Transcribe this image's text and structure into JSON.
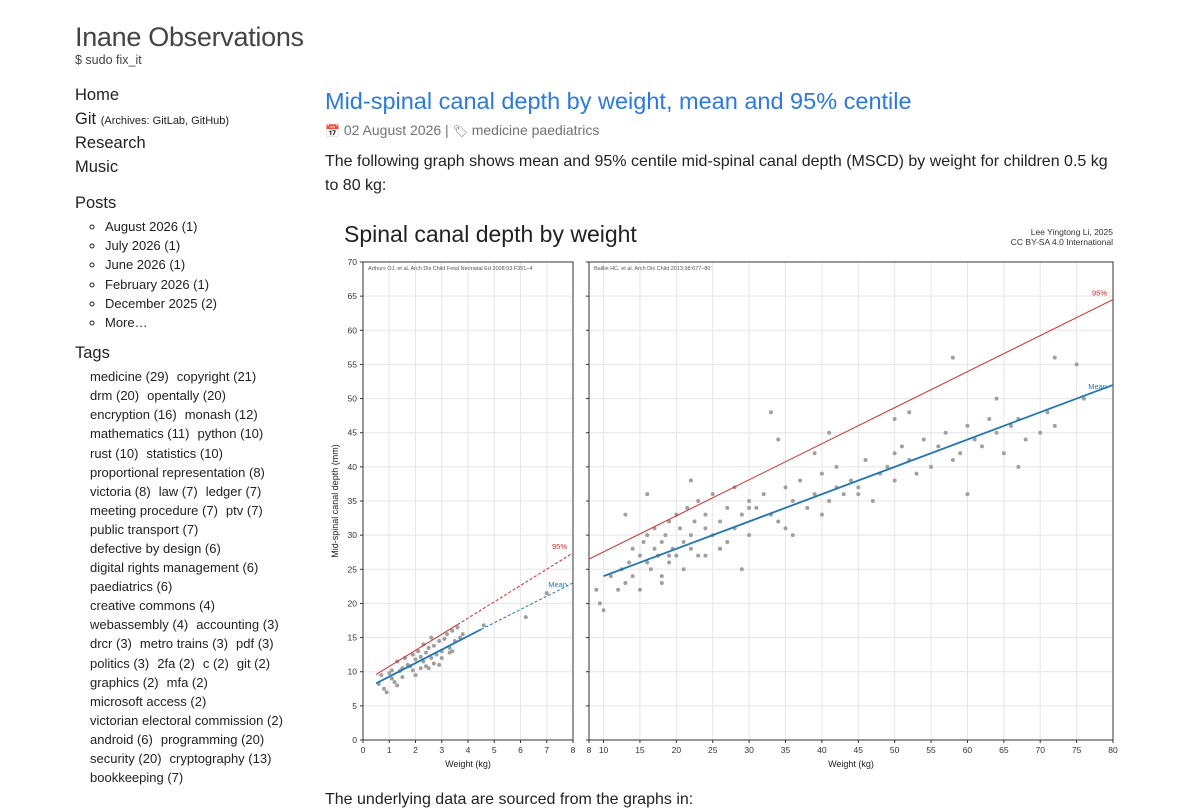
{
  "site": {
    "title": "Inane Observations",
    "subtitle": "$ sudo fix_it"
  },
  "nav": [
    {
      "label": "Home",
      "note": ""
    },
    {
      "label": "Git",
      "note": "(Archives: GitLab, GitHub)"
    },
    {
      "label": "Research",
      "note": ""
    },
    {
      "label": "Music",
      "note": ""
    }
  ],
  "posts": {
    "heading": "Posts",
    "items": [
      "August 2026 (1)",
      "July 2026 (1)",
      "June 2026 (1)",
      "February 2026 (1)",
      "December 2025 (2)",
      "More…"
    ]
  },
  "tags": {
    "heading": "Tags",
    "items": [
      "medicine (29)",
      "copyright (21)",
      "drm (20)",
      "opentally (20)",
      "encryption (16)",
      "monash (12)",
      "mathematics (11)",
      "python (10)",
      "rust (10)",
      "statistics (10)",
      "proportional representation (8)",
      "victoria (8)",
      "law (7)",
      "ledger (7)",
      "meeting procedure (7)",
      "ptv (7)",
      "public transport (7)",
      "defective by design (6)",
      "digital rights management (6)",
      "paediatrics (6)",
      "creative commons (4)",
      "webassembly (4)",
      "accounting (3)",
      "drcr (3)",
      "metro trains (3)",
      "pdf (3)",
      "politics (3)",
      "2fa (2)",
      "c (2)",
      "git (2)",
      "graphics (2)",
      "mfa (2)",
      "microsoft access (2)",
      "victorian electoral commission (2)",
      "android (6)",
      "programming (20)",
      "security (20)",
      "cryptography (13)",
      "bookkeeping (7)"
    ]
  },
  "post": {
    "title": "Mid-spinal canal depth by weight, mean and 95% centile",
    "date": "02 August 2026",
    "separator": "|",
    "tags_text": "medicine paediatrics",
    "lead": "The following graph shows mean and 95% centile mid-spinal canal depth (MSCD) by weight for children 0.5 kg to 80 kg:",
    "below": "The underlying data are sourced from the graphs in:"
  },
  "icons": {
    "calendar": "calendar-icon",
    "tags": "tags-icon"
  },
  "colors": {
    "link": "#2a7ae2",
    "mean": "#1f77b4",
    "centile": "#d62728",
    "points": "#a0a0a0"
  },
  "chart_data": {
    "type": "scatter",
    "title": "Spinal canal depth by weight",
    "credit_lines": [
      "Lee Yingtong Li, 2025",
      "CC BY-SA 4.0 International"
    ],
    "ylabel": "Mid-spinal canal depth (mm)",
    "ylim": [
      0,
      70
    ],
    "yticks": [
      0,
      5,
      10,
      15,
      20,
      25,
      30,
      35,
      40,
      45,
      50,
      55,
      60,
      65,
      70
    ],
    "grid": true,
    "panels": [
      {
        "source": "Arthurs OJ, et al. Arch Dis Child Fetal Neonatal Ed 2008;93:F351–4",
        "xlabel": "Weight (kg)",
        "xlim": [
          0,
          8
        ],
        "xticks": [
          0,
          1,
          2,
          3,
          4,
          5,
          6,
          7,
          8
        ],
        "series": [
          {
            "name": "95%",
            "style": "line",
            "x": [
              0.5,
              3.6
            ],
            "y": [
              9.6,
              16.9
            ],
            "extension_x": [
              3.6,
              8
            ],
            "extension_y": [
              16.9,
              27.4
            ]
          },
          {
            "name": "Mean",
            "style": "line",
            "x": [
              0.5,
              4.5
            ],
            "y": [
              8.3,
              16.2
            ],
            "extension_x": [
              4.5,
              8
            ],
            "extension_y": [
              16.2,
              23.0
            ]
          },
          {
            "style": "points",
            "x": [
              0.6,
              0.7,
              0.9,
              1.0,
              1.1,
              1.2,
              1.3,
              1.4,
              1.5,
              1.6,
              1.7,
              1.8,
              1.9,
              2.0,
              2.0,
              2.1,
              2.2,
              2.3,
              2.3,
              2.4,
              2.5,
              2.5,
              2.6,
              2.6,
              2.7,
              2.8,
              2.9,
              3.0,
              3.1,
              3.2,
              3.3,
              3.4,
              3.5,
              3.6,
              3.7,
              3.8,
              1.1,
              1.5,
              1.9,
              2.4,
              2.7,
              3.0,
              3.4,
              4.6,
              6.2,
              7.0,
              0.8,
              1.3,
              2.2,
              2.9,
              3.3
            ],
            "y": [
              8.2,
              9.5,
              7.0,
              9.8,
              10.2,
              8.5,
              11.5,
              10.1,
              10.5,
              12.0,
              11.0,
              10.8,
              12.5,
              11.8,
              9.5,
              13.0,
              12.2,
              14.0,
              11.5,
              12.8,
              13.5,
              10.5,
              15.0,
              12.0,
              13.8,
              12.5,
              14.5,
              13.0,
              14.8,
              15.5,
              13.5,
              16.0,
              14.5,
              16.5,
              15.0,
              15.5,
              9.0,
              9.2,
              10.2,
              10.8,
              11.2,
              12.0,
              13.0,
              16.8,
              18.0,
              21.5,
              7.5,
              8.0,
              10.5,
              11.0,
              12.8
            ]
          }
        ]
      },
      {
        "source": "Baillie HC, et al. Arch Dis Child 2013;98:677–80",
        "xlabel": "Weight (kg)",
        "xlim": [
          8,
          80
        ],
        "xticks": [
          8,
          10,
          15,
          20,
          25,
          30,
          35,
          40,
          45,
          50,
          55,
          60,
          65,
          70,
          75,
          80
        ],
        "series": [
          {
            "name": "95%",
            "style": "line",
            "x": [
              8,
              80
            ],
            "y": [
              26.5,
              64.5
            ]
          },
          {
            "name": "Mean",
            "style": "line",
            "x": [
              10,
              80
            ],
            "y": [
              24.0,
              52.0
            ]
          },
          {
            "style": "points",
            "x": [
              9,
              9.5,
              10,
              11,
              12,
              12.5,
              13,
              13.5,
              14,
              14,
              15,
              15,
              15.5,
              16,
              16,
              16.5,
              17,
              17,
              17.5,
              18,
              18,
              18.5,
              19,
              19,
              19.5,
              20,
              20,
              20.5,
              21,
              21,
              21.5,
              22,
              22,
              22.5,
              23,
              23,
              24,
              24,
              25,
              25,
              26,
              26,
              27,
              27,
              28,
              28,
              29,
              30,
              30,
              31,
              32,
              33,
              33,
              34,
              35,
              35,
              36,
              37,
              38,
              39,
              40,
              40,
              41,
              42,
              42,
              43,
              44,
              45,
              46,
              47,
              48,
              49,
              50,
              50,
              51,
              52,
              53,
              54,
              55,
              56,
              57,
              58,
              59,
              60,
              61,
              62,
              63,
              64,
              65,
              66,
              67,
              68,
              70,
              71,
              72,
              75,
              76,
              16,
              18,
              22,
              26,
              30,
              36,
              41,
              50,
              58,
              64,
              72,
              13,
              19,
              24,
              29,
              34,
              39,
              45,
              52,
              60,
              67
            ],
            "y": [
              22,
              20,
              19,
              24,
              22,
              25,
              23,
              26,
              24,
              28,
              27,
              22,
              29,
              26,
              30,
              25,
              28,
              31,
              27,
              29,
              24,
              30,
              32,
              26,
              28,
              33,
              27,
              31,
              29,
              25,
              34,
              30,
              28,
              32,
              27,
              35,
              31,
              33,
              30,
              36,
              32,
              28,
              34,
              29,
              31,
              37,
              33,
              35,
              30,
              34,
              36,
              33,
              48,
              32,
              37,
              31,
              35,
              38,
              34,
              36,
              39,
              33,
              35,
              37,
              40,
              36,
              38,
              37,
              41,
              35,
              39,
              40,
              38,
              42,
              43,
              41,
              39,
              44,
              40,
              43,
              45,
              41,
              42,
              46,
              44,
              43,
              47,
              45,
              42,
              46,
              47,
              44,
              45,
              48,
              46,
              55,
              50,
              36,
              23,
              38,
              28,
              34,
              30,
              45,
              47,
              56,
              50,
              56,
              33,
              27,
              27,
              25,
              44,
              42,
              36,
              48,
              36,
              40
            ]
          }
        ]
      }
    ]
  }
}
